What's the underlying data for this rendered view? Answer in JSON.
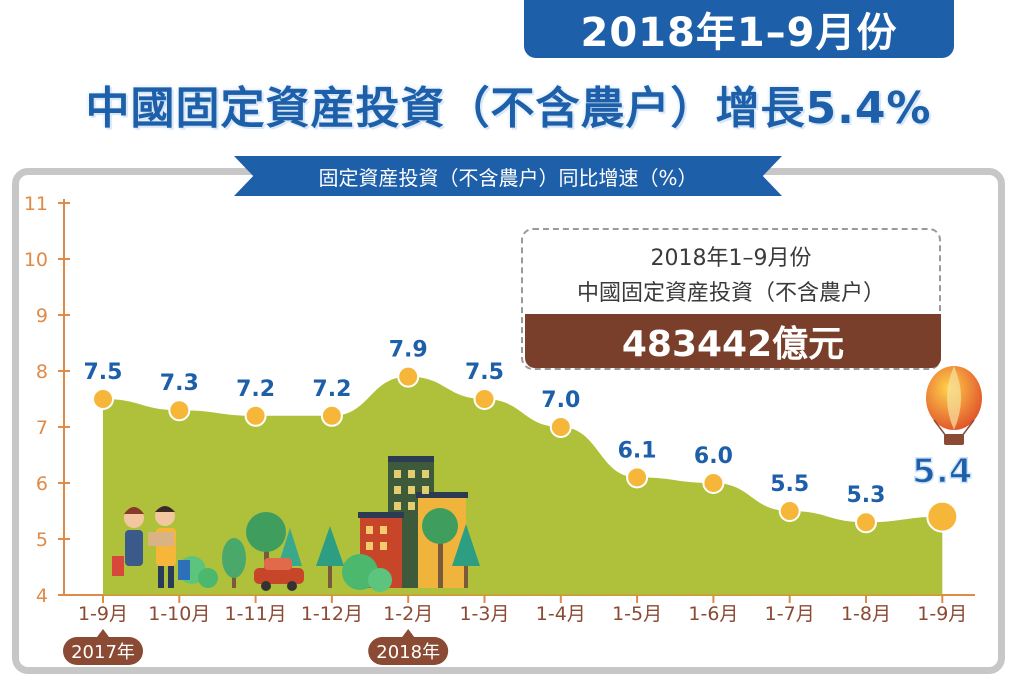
{
  "banner": {
    "period": "2018年1–9月份"
  },
  "headline": {
    "title": "中國固定資産投資（不含農户）增長5.4%"
  },
  "ribbon": {
    "label": "固定資産投資（不含農户）同比增速（%）"
  },
  "callout": {
    "line1": "2018年1–9月份",
    "line2": "中國固定資産投資（不含農户）",
    "value": "483442億元"
  },
  "year_tags": [
    "2017年",
    "2018年"
  ],
  "colors": {
    "blue": "#1d5fa8",
    "area": "#a8bc2a",
    "point": "#f6b63a",
    "axis": "#e08a47",
    "brown": "#8a4a34"
  },
  "chart_data": {
    "type": "area",
    "title": "固定資産投資（不含農户）同比增速（%）",
    "categories": [
      "1-9月",
      "1-10月",
      "1-11月",
      "1-12月",
      "1-2月",
      "1-3月",
      "1-4月",
      "1-5月",
      "1-6月",
      "1-7月",
      "1-8月",
      "1-9月"
    ],
    "values": [
      7.5,
      7.3,
      7.2,
      7.2,
      7.9,
      7.5,
      7.0,
      6.1,
      6.0,
      5.5,
      5.3,
      5.4
    ],
    "value_labels": [
      "7.5",
      "7.3",
      "7.2",
      "7.2",
      "7.9",
      "7.5",
      "7.0",
      "6.1",
      "6.0",
      "5.5",
      "5.3",
      "5.4"
    ],
    "yticks": [
      "4",
      "5",
      "6",
      "7",
      "8",
      "9",
      "10",
      "11"
    ],
    "ylim": [
      4,
      11
    ],
    "grid": false,
    "legend": "none"
  }
}
